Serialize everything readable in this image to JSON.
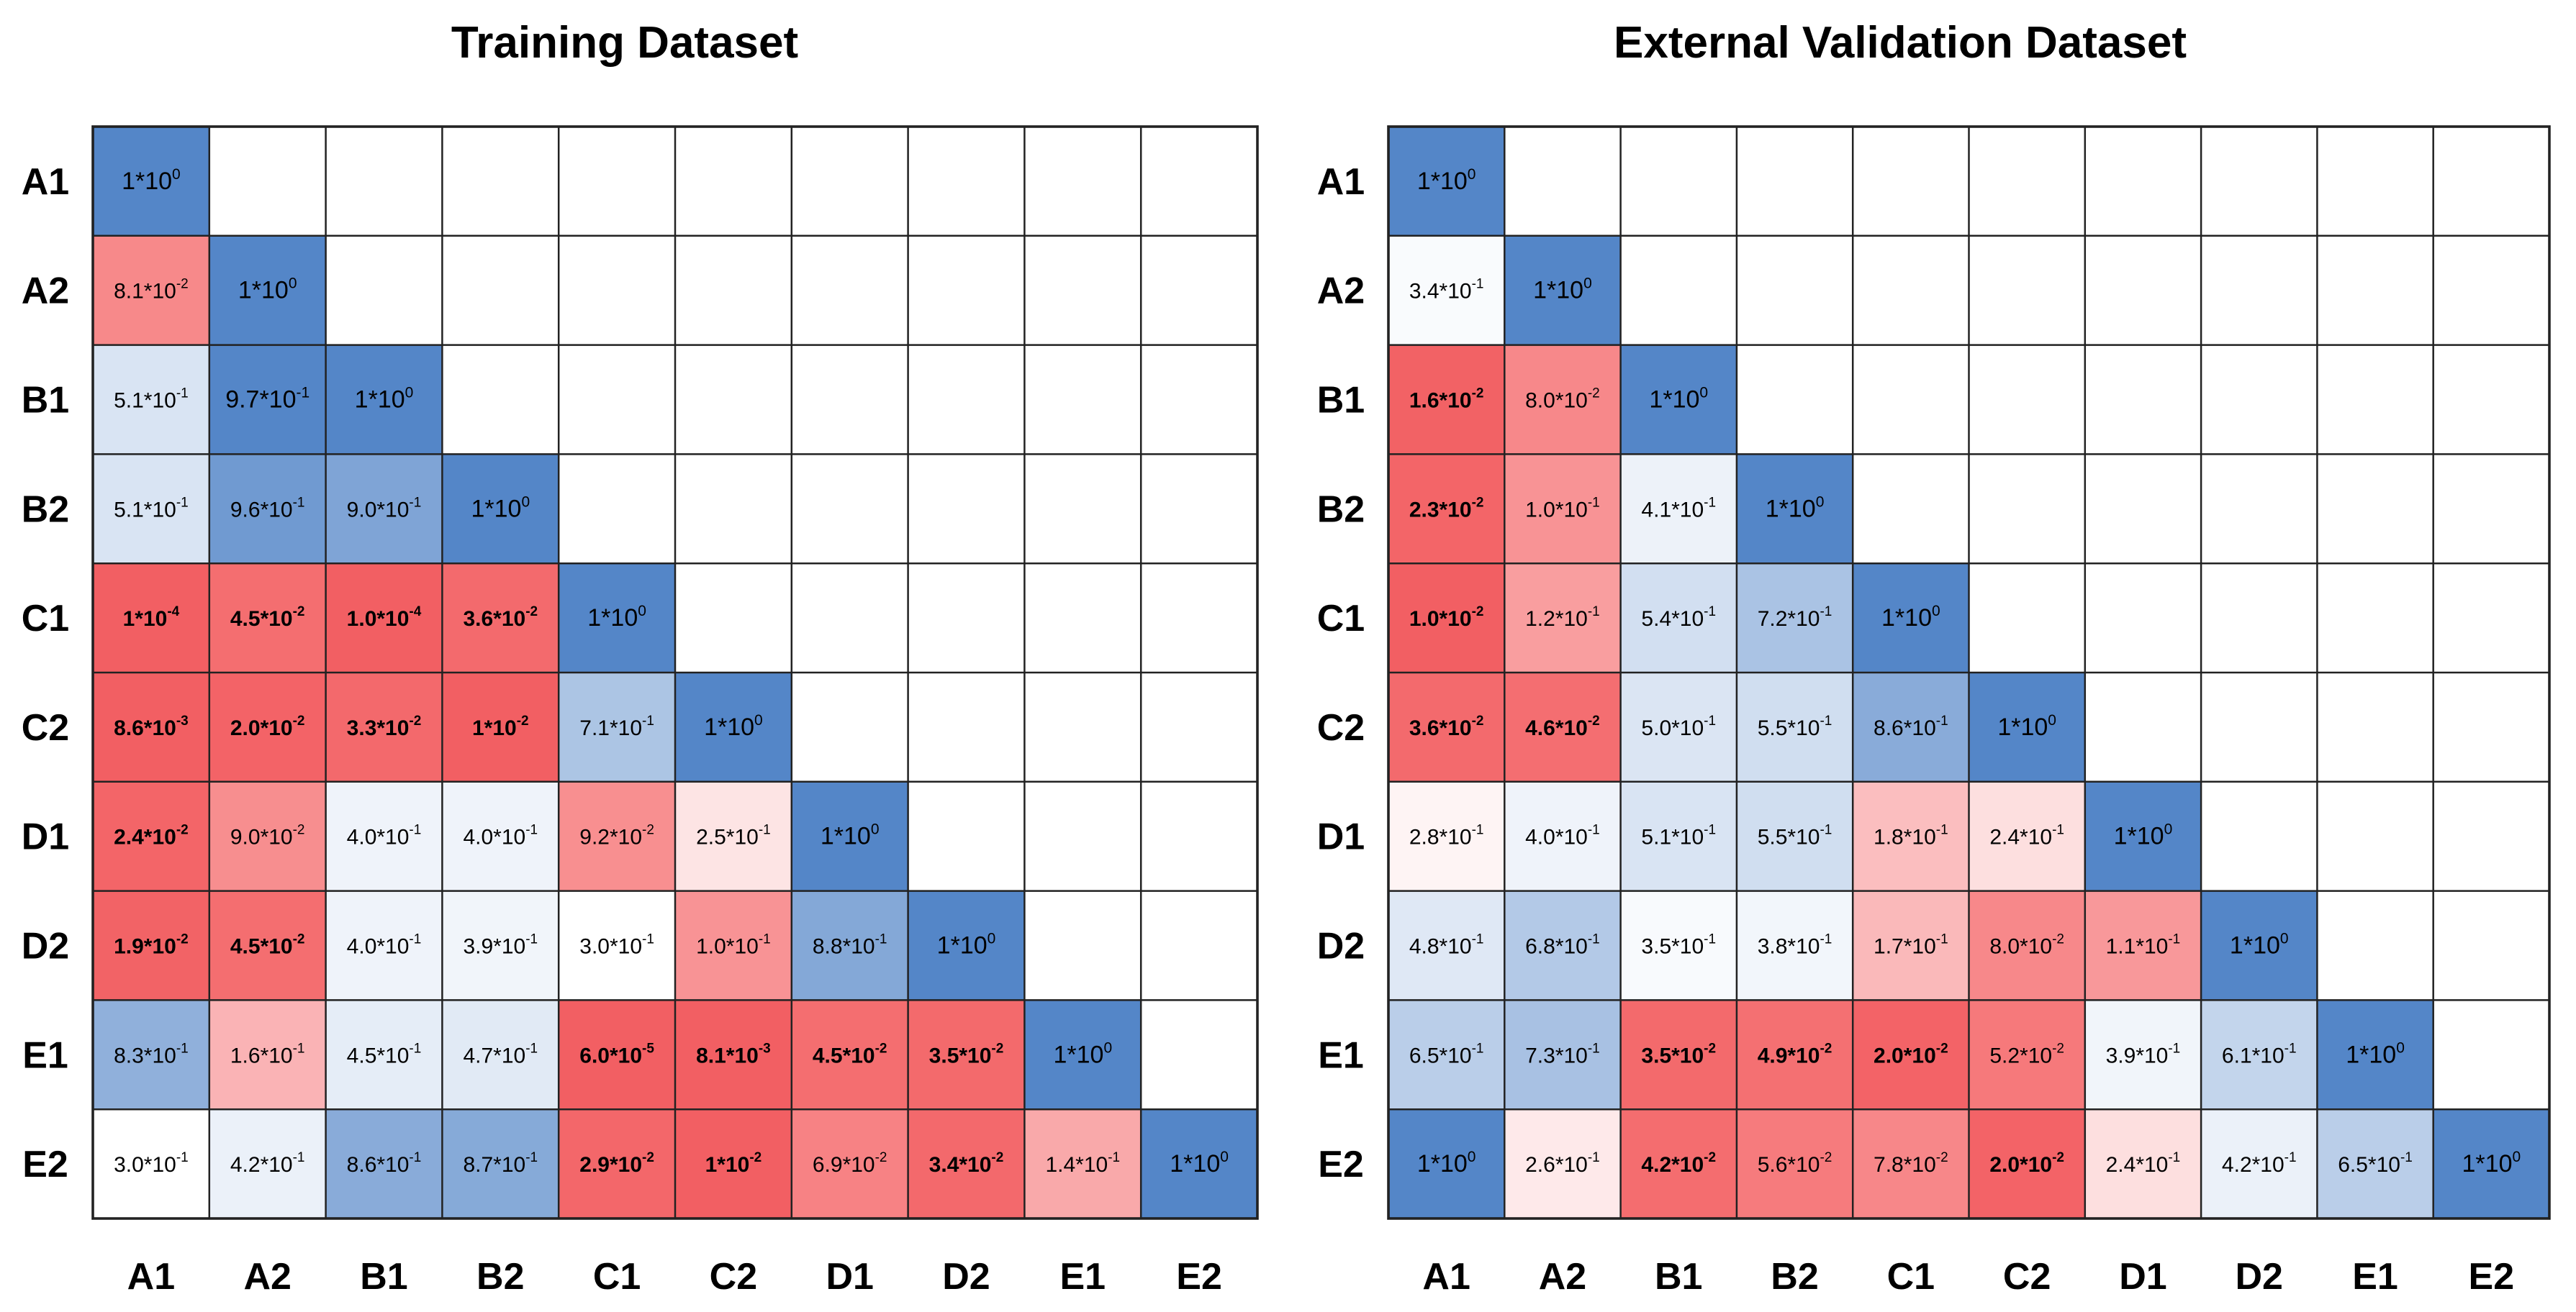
{
  "chart_data": [
    {
      "type": "heatmap",
      "title": "Training Dataset",
      "row_labels": [
        "A1",
        "A2",
        "B1",
        "B2",
        "C1",
        "C2",
        "D1",
        "D2",
        "E1",
        "E2"
      ],
      "col_labels": [
        "A1",
        "A2",
        "B1",
        "B2",
        "C1",
        "C2",
        "D1",
        "D2",
        "E1",
        "E2"
      ],
      "cells": [
        [
          "1*10^0"
        ],
        [
          "8.1*10^-2",
          "1*10^0"
        ],
        [
          "5.1*10^-1",
          "9.7*10^-1",
          "1*10^0"
        ],
        [
          "5.1*10^-1",
          "9.6*10^-1",
          "9.0*10^-1",
          "1*10^0"
        ],
        [
          "1*10^-4",
          "4.5*10^-2",
          "1.0*10^-4",
          "3.6*10^-2",
          "1*10^0"
        ],
        [
          "8.6*10^-3",
          "2.0*10^-2",
          "3.3*10^-2",
          "1*10^-2",
          "7.1*10^-1",
          "1*10^0"
        ],
        [
          "2.4*10^-2",
          "9.0*10^-2",
          "4.0*10^-1",
          "4.0*10^-1",
          "9.2*10^-2",
          "2.5*10^-1",
          "1*10^0"
        ],
        [
          "1.9*10^-2",
          "4.5*10^-2",
          "4.0*10^-1",
          "3.9*10^-1",
          "3.0*10^-1",
          "1.0*10^-1",
          "8.8*10^-1",
          "1*10^0"
        ],
        [
          "8.3*10^-1",
          "1.6*10^-1",
          "4.5*10^-1",
          "4.7*10^-1",
          "6.0*10^-5",
          "8.1*10^-3",
          "4.5*10^-2",
          "3.5*10^-2",
          "1*10^0"
        ],
        [
          "3.0*10^-1",
          "4.2*10^-1",
          "8.6*10^-1",
          "8.7*10^-1",
          "2.9*10^-2",
          "1*10^-2",
          "6.9*10^-2",
          "3.4*10^-2",
          "1.4*10^-1",
          "1*10^0"
        ]
      ]
    },
    {
      "type": "heatmap",
      "title": "External Validation Dataset",
      "row_labels": [
        "A1",
        "A2",
        "B1",
        "B2",
        "C1",
        "C2",
        "D1",
        "D2",
        "E1",
        "E2"
      ],
      "col_labels": [
        "A1",
        "A2",
        "B1",
        "B2",
        "C1",
        "C2",
        "D1",
        "D2",
        "E1",
        "E2"
      ],
      "cells": [
        [
          "1*10^0"
        ],
        [
          "3.4*10^-1",
          "1*10^0"
        ],
        [
          "1.6*10^-2",
          "8.0*10^-2",
          "1*10^0"
        ],
        [
          "2.3*10^-2",
          "1.0*10^-1",
          "4.1*10^-1",
          "1*10^0"
        ],
        [
          "1.0*10^-2",
          "1.2*10^-1",
          "5.4*10^-1",
          "7.2*10^-1",
          "1*10^0"
        ],
        [
          "3.6*10^-2",
          "4.6*10^-2",
          "5.0*10^-1",
          "5.5*10^-1",
          "8.6*10^-1",
          "1*10^0"
        ],
        [
          "2.8*10^-1",
          "4.0*10^-1",
          "5.1*10^-1",
          "5.5*10^-1",
          "1.8*10^-1",
          "2.4*10^-1",
          "1*10^0"
        ],
        [
          "4.8*10^-1",
          "6.8*10^-1",
          "3.5*10^-1",
          "3.8*10^-1",
          "1.7*10^-1",
          "8.0*10^-2",
          "1.1*10^-1",
          "1*10^0"
        ],
        [
          "6.5*10^-1",
          "7.3*10^-1",
          "3.5*10^-2",
          "4.9*10^-2",
          "2.0*10^-2",
          "5.2*10^-2",
          "3.9*10^-1",
          "6.1*10^-1",
          "1*10^0"
        ],
        [
          "1*10^0",
          "2.6*10^-1",
          "4.2*10^-2",
          "5.6*10^-2",
          "7.8*10^-2",
          "2.0*10^-2",
          "2.4*10^-1",
          "4.2*10^-1",
          "6.5*10^-1",
          "1*10^0"
        ]
      ]
    }
  ]
}
